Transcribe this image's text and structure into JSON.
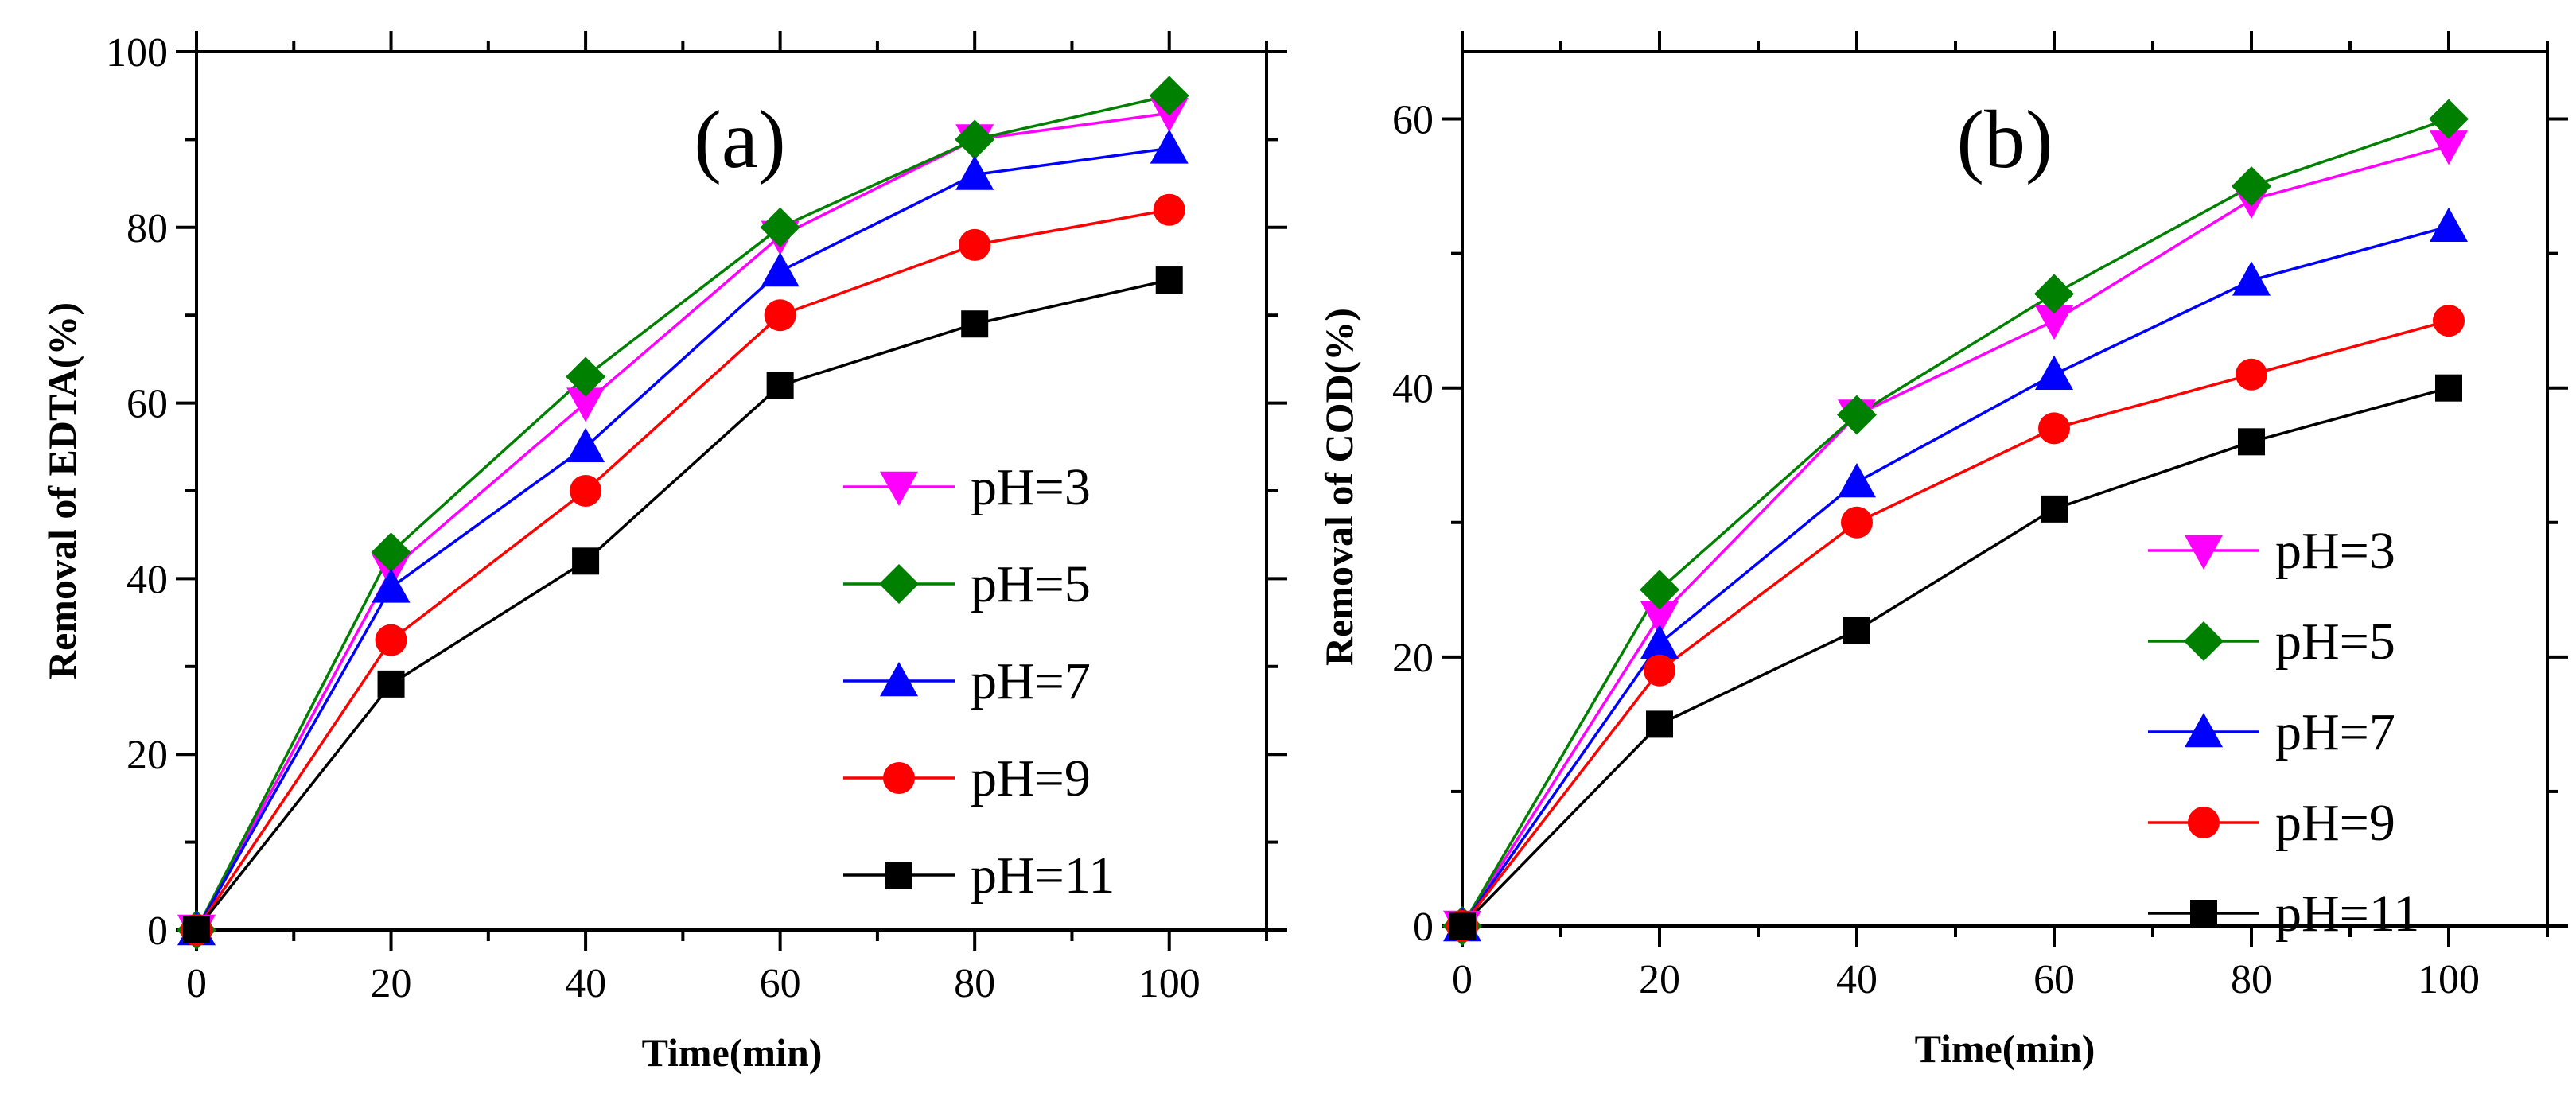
{
  "chart_data": [
    {
      "id": "a",
      "type": "line",
      "title": "",
      "panel_label": "(a)",
      "xlabel": "Time(min)",
      "ylabel": "Removal of EDTA(%)",
      "xlim": [
        0,
        110
      ],
      "ylim": [
        0,
        100
      ],
      "xticks": [
        0,
        20,
        40,
        60,
        80,
        100
      ],
      "yticks": [
        0,
        20,
        40,
        60,
        80,
        100
      ],
      "x": [
        0,
        20,
        40,
        60,
        80,
        100
      ],
      "legend_position": "center-right",
      "series": [
        {
          "name": "pH=3",
          "color": "#ff00ff",
          "marker": "triangle-down",
          "values": [
            0,
            41,
            60,
            79,
            90,
            93
          ]
        },
        {
          "name": "pH=5",
          "color": "#008000",
          "marker": "diamond",
          "values": [
            0,
            43,
            63,
            80,
            90,
            95
          ]
        },
        {
          "name": "pH=7",
          "color": "#0000ff",
          "marker": "triangle-up",
          "values": [
            0,
            39,
            55,
            75,
            86,
            89
          ]
        },
        {
          "name": "pH=9",
          "color": "#ff0000",
          "marker": "circle",
          "values": [
            0,
            33,
            50,
            70,
            78,
            82
          ]
        },
        {
          "name": "pH=11",
          "color": "#000000",
          "marker": "square",
          "values": [
            0,
            28,
            42,
            62,
            69,
            74
          ]
        }
      ]
    },
    {
      "id": "b",
      "type": "line",
      "title": "",
      "panel_label": "(b)",
      "xlabel": "Time(min)",
      "ylabel": "Removal of COD(%)",
      "xlim": [
        0,
        110
      ],
      "ylim": [
        0,
        65
      ],
      "xticks": [
        0,
        20,
        40,
        60,
        80,
        100
      ],
      "yticks": [
        0,
        20,
        40,
        60
      ],
      "x": [
        0,
        20,
        40,
        60,
        80,
        100
      ],
      "legend_position": "center-right",
      "series": [
        {
          "name": "pH=3",
          "color": "#ff00ff",
          "marker": "triangle-down",
          "values": [
            0,
            23,
            38,
            45,
            54,
            58
          ]
        },
        {
          "name": "pH=5",
          "color": "#008000",
          "marker": "diamond",
          "values": [
            0,
            25,
            38,
            47,
            55,
            60
          ]
        },
        {
          "name": "pH=7",
          "color": "#0000ff",
          "marker": "triangle-up",
          "values": [
            0,
            21,
            33,
            41,
            48,
            52
          ]
        },
        {
          "name": "pH=9",
          "color": "#ff0000",
          "marker": "circle",
          "values": [
            0,
            19,
            30,
            37,
            41,
            45
          ]
        },
        {
          "name": "pH=11",
          "color": "#000000",
          "marker": "square",
          "values": [
            0,
            15,
            22,
            31,
            36,
            40
          ]
        }
      ]
    }
  ]
}
